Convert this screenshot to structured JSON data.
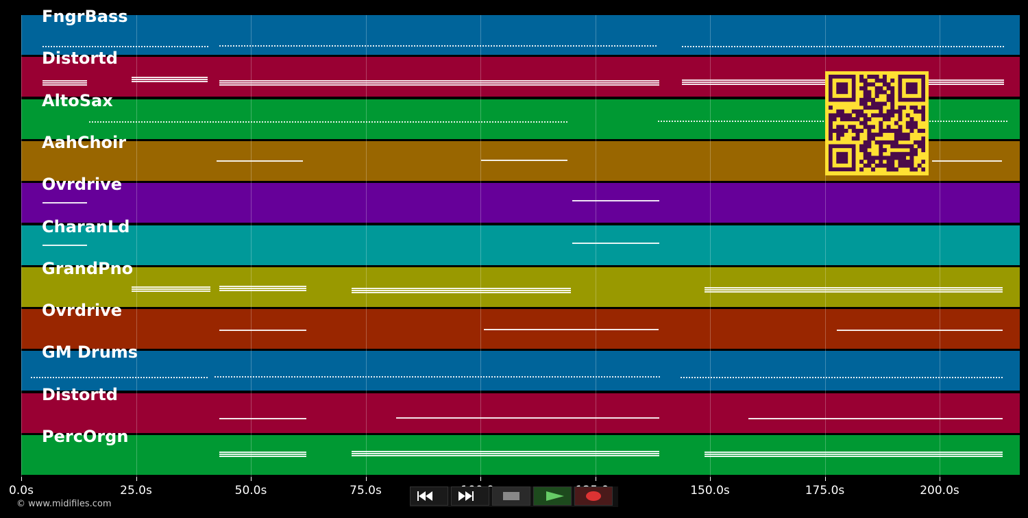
{
  "tracks": [
    {
      "name": "FngrBass",
      "color": "#00649a"
    },
    {
      "name": "Distortd",
      "color": "#990033"
    },
    {
      "name": "AltoSax",
      "color": "#009933"
    },
    {
      "name": "AahChoir",
      "color": "#996600"
    },
    {
      "name": "Ovrdrive",
      "color": "#660099"
    },
    {
      "name": "CharanLd",
      "color": "#009999"
    },
    {
      "name": "GrandPno",
      "color": "#999900"
    },
    {
      "name": "Ovrdrive",
      "color": "#992600"
    },
    {
      "name": "GM Drums",
      "color": "#00649a"
    },
    {
      "name": "Distortd",
      "color": "#990033"
    },
    {
      "name": "PercOrgn",
      "color": "#009933"
    }
  ],
  "timeline": {
    "ticks": [
      "0.0s",
      "25.0s",
      "50.0s",
      "75.0s",
      "100.0s",
      "125.0s",
      "150.0s",
      "175.0s",
      "200.0s"
    ]
  },
  "copyright": "© www.midifiles.com",
  "controls": [
    {
      "name": "rewind-button",
      "icon": "rewind-icon"
    },
    {
      "name": "fast-forward-button",
      "icon": "fast-forward-icon"
    },
    {
      "name": "stop-button",
      "icon": "stop-icon"
    },
    {
      "name": "play-button",
      "icon": "play-icon"
    },
    {
      "name": "record-button",
      "icon": "record-icon"
    }
  ],
  "qr": {
    "icon": "qr-code-icon",
    "color": "#ffe033",
    "module_color": "#4a0a4a"
  }
}
